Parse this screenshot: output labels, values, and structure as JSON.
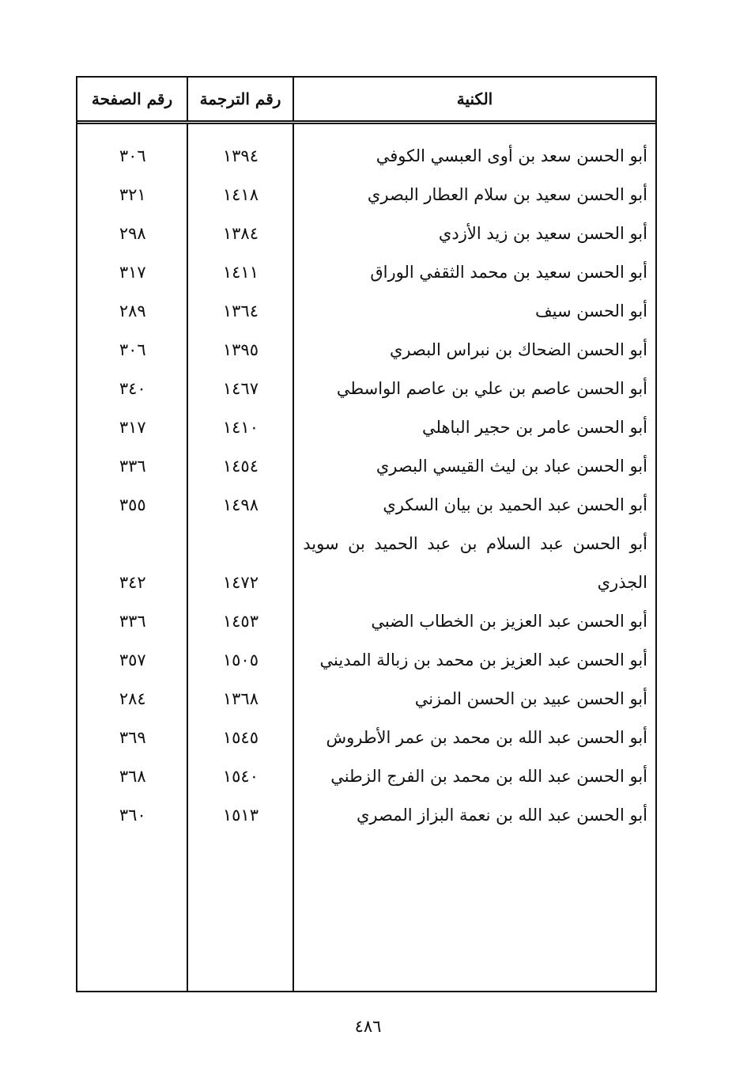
{
  "header": {
    "name": "الكنية",
    "translation_no": "رقم الترجمة",
    "page_no": "رقم الصفحة"
  },
  "rows": [
    {
      "name": "أبو الحسن سعد بن أوى العبسي الكوفي",
      "translation": "١٣٩٤",
      "page": "٣٠٦"
    },
    {
      "name": "أبو الحسن سعيد بن سلام العطار البصري",
      "translation": "١٤١٨",
      "page": "٣٢١"
    },
    {
      "name": "أبو الحسن سعيد بن زيد الأزدي",
      "translation": "١٣٨٤",
      "page": "٢٩٨"
    },
    {
      "name": "أبو الحسن سعيد بن محمد الثقفي الوراق",
      "translation": "١٤١١",
      "page": "٣١٧"
    },
    {
      "name": "أبو الحسن سيف",
      "translation": "١٣٦٤",
      "page": "٢٨٩"
    },
    {
      "name": "أبو الحسن الضحاك بن نبراس البصري",
      "translation": "١٣٩٥",
      "page": "٣٠٦"
    },
    {
      "name": "أبو الحسن عاصم بن علي بن عاصم الواسطي",
      "translation": "١٤٦٧",
      "page": "٣٤٠"
    },
    {
      "name": "أبو الحسن عامر بن حجير الباهلي",
      "translation": "١٤١٠",
      "page": "٣١٧"
    },
    {
      "name": "أبو الحسن عباد بن ليث القيسي البصري",
      "translation": "١٤٥٤",
      "page": "٣٣٦"
    },
    {
      "name": "أبو الحسن عبد الحميد بن بيان السكري",
      "translation": "١٤٩٨",
      "page": "٣٥٥"
    },
    {
      "name": "أبو الحسن عبد السلام بن عبد الحميد بن سويد الجذري",
      "translation": "١٤٧٢",
      "page": "٣٤٢"
    },
    {
      "name": "أبو الحسن عبد العزيز بن الخطاب الضبي",
      "translation": "١٤٥٣",
      "page": "٣٣٦"
    },
    {
      "name": "أبو الحسن عبد العزيز بن محمد بن زبالة المديني",
      "translation": "١٥٠٥",
      "page": "٣٥٧"
    },
    {
      "name": "أبو الحسن عبيد بن الحسن المزني",
      "translation": "١٣٦٨",
      "page": "٢٨٤"
    },
    {
      "name": "أبو الحسن عبد الله بن محمد بن عمر الأطروش",
      "translation": "١٥٤٥",
      "page": "٣٦٩"
    },
    {
      "name": "أبو الحسن عبد الله بن محمد بن الفرج الزطني",
      "translation": "١٥٤٠",
      "page": "٣٦٨"
    },
    {
      "name": "أبو الحسن عبد الله بن نعمة البزاز المصري",
      "translation": "١٥١٣",
      "page": "٣٦٠"
    }
  ],
  "page_number": "٤٨٦"
}
